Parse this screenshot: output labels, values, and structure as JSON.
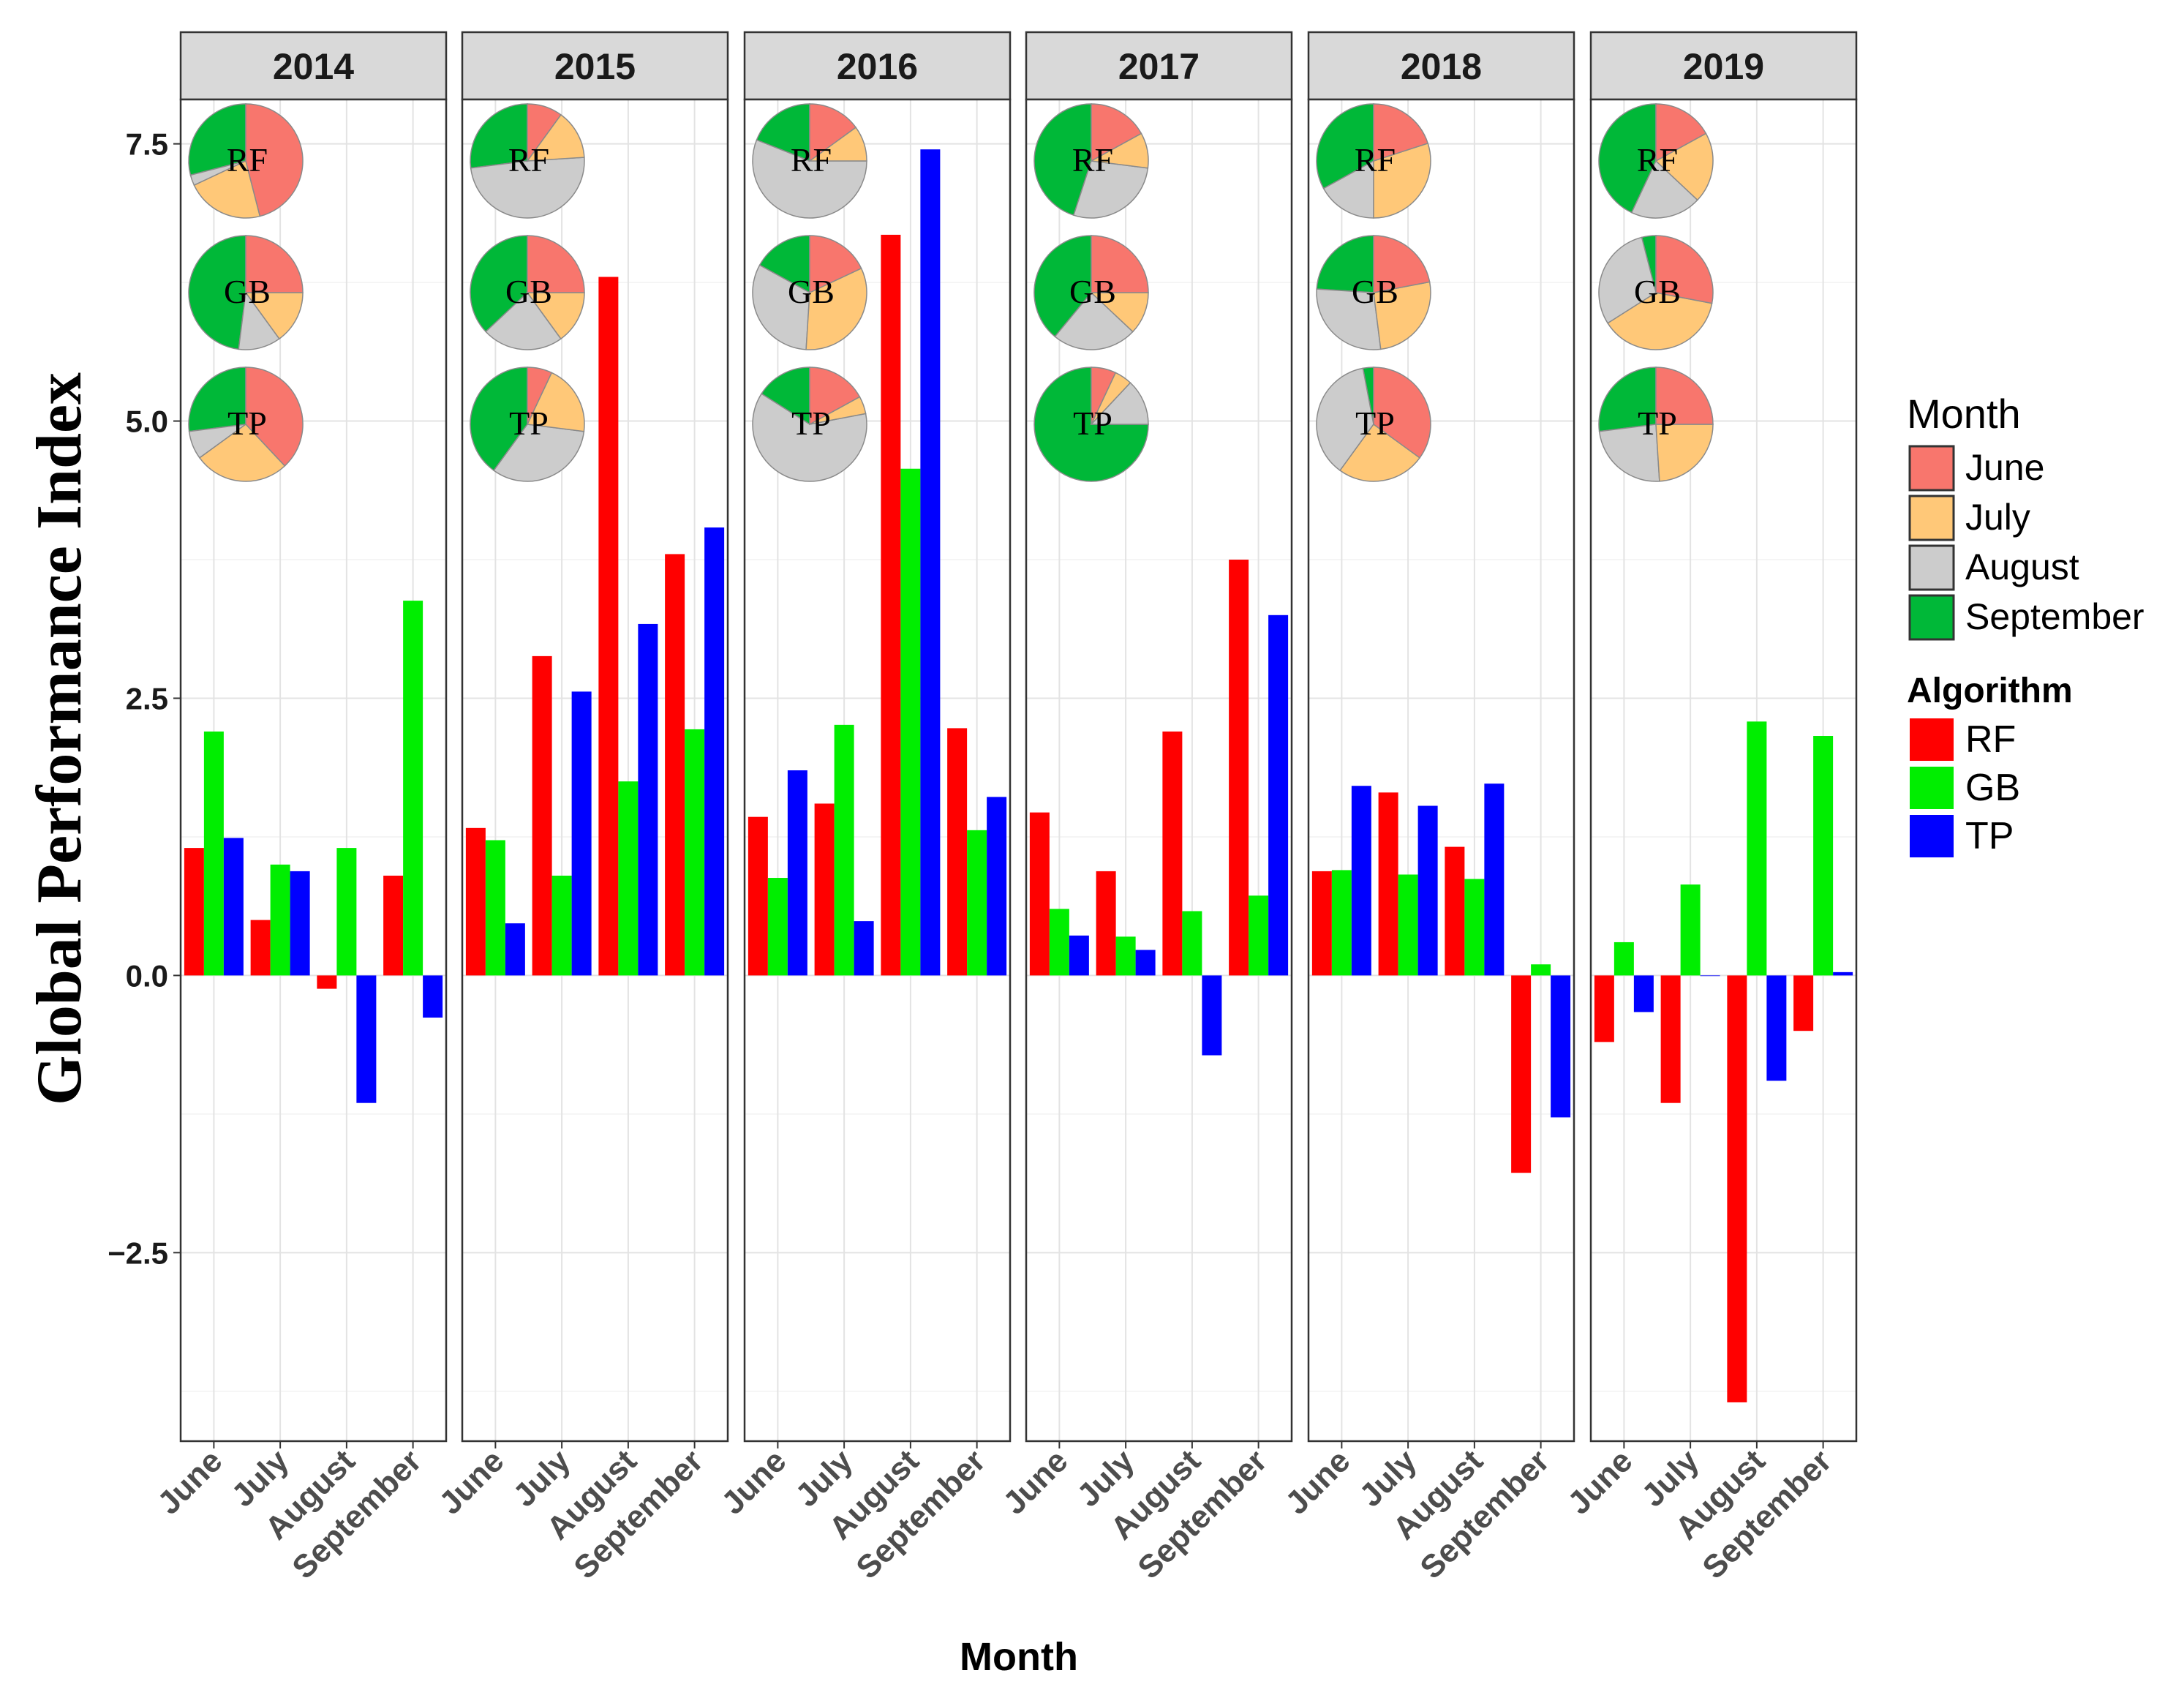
{
  "chart_data": {
    "type": "bar",
    "facet_var": "Year",
    "facets": [
      "2014",
      "2015",
      "2016",
      "2017",
      "2018",
      "2019"
    ],
    "categories": [
      "June",
      "July",
      "August",
      "September"
    ],
    "xlabel": "Month",
    "ylabel": "Global Performance Index",
    "ylim": [
      -4.2,
      7.9
    ],
    "yticks": [
      -2.5,
      0.0,
      2.5,
      5.0,
      7.5
    ],
    "ytick_labels": [
      "−2.5",
      "0.0",
      "2.5",
      "5.0",
      "7.5"
    ],
    "grid": true,
    "series_colors": {
      "RF": "#ff0000",
      "GB": "#00ee00",
      "TP": "#0000ff"
    },
    "values": {
      "2014": {
        "RF": [
          1.15,
          0.5,
          -0.12,
          0.9
        ],
        "GB": [
          2.2,
          1.0,
          1.15,
          3.38
        ],
        "TP": [
          1.24,
          0.94,
          -1.15,
          -0.38
        ]
      },
      "2015": {
        "RF": [
          1.33,
          2.88,
          6.3,
          3.8
        ],
        "GB": [
          1.22,
          0.9,
          1.75,
          2.22
        ],
        "TP": [
          0.47,
          2.56,
          3.17,
          4.04
        ]
      },
      "2016": {
        "RF": [
          1.43,
          1.55,
          6.68,
          2.23
        ],
        "GB": [
          0.88,
          2.26,
          4.57,
          1.31
        ],
        "TP": [
          1.85,
          0.49,
          7.45,
          1.61
        ]
      },
      "2017": {
        "RF": [
          1.47,
          0.94,
          2.2,
          3.75
        ],
        "GB": [
          0.6,
          0.35,
          0.58,
          0.72
        ],
        "TP": [
          0.36,
          0.23,
          -0.72,
          3.25
        ]
      },
      "2018": {
        "RF": [
          0.94,
          1.65,
          1.16,
          -1.78
        ],
        "GB": [
          0.95,
          0.91,
          0.87,
          0.1
        ],
        "TP": [
          1.71,
          1.53,
          1.73,
          -1.28
        ]
      },
      "2019": {
        "RF": [
          -0.6,
          -1.15,
          -3.85,
          -0.5
        ],
        "GB": [
          0.3,
          0.82,
          2.29,
          2.16
        ],
        "TP": [
          -0.33,
          0.0,
          -0.95,
          0.03
        ]
      }
    },
    "pie_legend_colors": {
      "June": "#f8766d",
      "July": "#ffc878",
      "August": "#cccccc",
      "September": "#00b838"
    },
    "pie_labels": [
      "RF",
      "GB",
      "TP"
    ],
    "pies": {
      "2014": {
        "RF": [
          0.46,
          0.22,
          0.03,
          0.29
        ],
        "GB": [
          0.25,
          0.15,
          0.12,
          0.48
        ],
        "TP": [
          0.38,
          0.27,
          0.08,
          0.27
        ]
      },
      "2015": {
        "RF": [
          0.1,
          0.14,
          0.49,
          0.27
        ],
        "GB": [
          0.25,
          0.15,
          0.23,
          0.37
        ],
        "TP": [
          0.07,
          0.2,
          0.33,
          0.4
        ]
      },
      "2016": {
        "RF": [
          0.15,
          0.1,
          0.56,
          0.19
        ],
        "GB": [
          0.18,
          0.33,
          0.32,
          0.17
        ],
        "TP": [
          0.17,
          0.05,
          0.62,
          0.16
        ]
      },
      "2017": {
        "RF": [
          0.17,
          0.1,
          0.28,
          0.45
        ],
        "GB": [
          0.25,
          0.12,
          0.24,
          0.39
        ],
        "TP": [
          0.07,
          0.05,
          0.13,
          0.75
        ]
      },
      "2018": {
        "RF": [
          0.2,
          0.3,
          0.17,
          0.33
        ],
        "GB": [
          0.22,
          0.26,
          0.28,
          0.24
        ],
        "TP": [
          0.35,
          0.25,
          0.37,
          0.03
        ]
      },
      "2019": {
        "RF": [
          0.17,
          0.2,
          0.2,
          0.43
        ],
        "GB": [
          0.28,
          0.38,
          0.3,
          0.04
        ],
        "TP": [
          0.25,
          0.24,
          0.24,
          0.27
        ]
      }
    },
    "legends": [
      {
        "title": "Month",
        "items": [
          "June",
          "July",
          "August",
          "September"
        ]
      },
      {
        "title": "Algorithm",
        "items": [
          "RF",
          "GB",
          "TP"
        ]
      }
    ]
  }
}
